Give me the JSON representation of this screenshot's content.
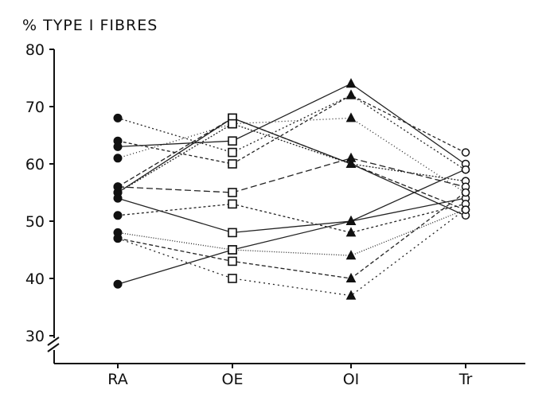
{
  "chart_data": {
    "type": "line",
    "title": "% TYPE I FIBRES",
    "xlabel": "",
    "ylabel": "",
    "categories": [
      "RA",
      "OE",
      "OI",
      "Tr"
    ],
    "ylim": [
      28,
      80
    ],
    "yticks": [
      30,
      40,
      50,
      60,
      70,
      80
    ],
    "axis_break": true,
    "grid": false,
    "legend": "none",
    "markers_by_category": {
      "RA": "filled-circle",
      "OE": "open-square",
      "OI": "filled-triangle",
      "Tr": "open-circle"
    },
    "series": [
      {
        "values": [
          68,
          62,
          72,
          59
        ],
        "dash": "2,3"
      },
      {
        "values": [
          64,
          60,
          72,
          62
        ],
        "dash": "4,3"
      },
      {
        "values": [
          63,
          64,
          74,
          60
        ],
        "dash": "none"
      },
      {
        "values": [
          61,
          67,
          68,
          55
        ],
        "dash": "1,3"
      },
      {
        "values": [
          56,
          68,
          60,
          52
        ],
        "dash": "6,3"
      },
      {
        "values": [
          55,
          68,
          60,
          51
        ],
        "dash": "none"
      },
      {
        "values": [
          55,
          67,
          60,
          57
        ],
        "dash": "2,2"
      },
      {
        "values": [
          56,
          55,
          61,
          56
        ],
        "dash": "8,4"
      },
      {
        "values": [
          54,
          48,
          50,
          54
        ],
        "dash": "none"
      },
      {
        "values": [
          51,
          53,
          48,
          53
        ],
        "dash": "3,3"
      },
      {
        "values": [
          48,
          45,
          44,
          52
        ],
        "dash": "1,2"
      },
      {
        "values": [
          47,
          43,
          40,
          55
        ],
        "dash": "5,3"
      },
      {
        "values": [
          47,
          40,
          37,
          52
        ],
        "dash": "2,4"
      },
      {
        "values": [
          39,
          45,
          50,
          59
        ],
        "dash": "none"
      }
    ]
  }
}
